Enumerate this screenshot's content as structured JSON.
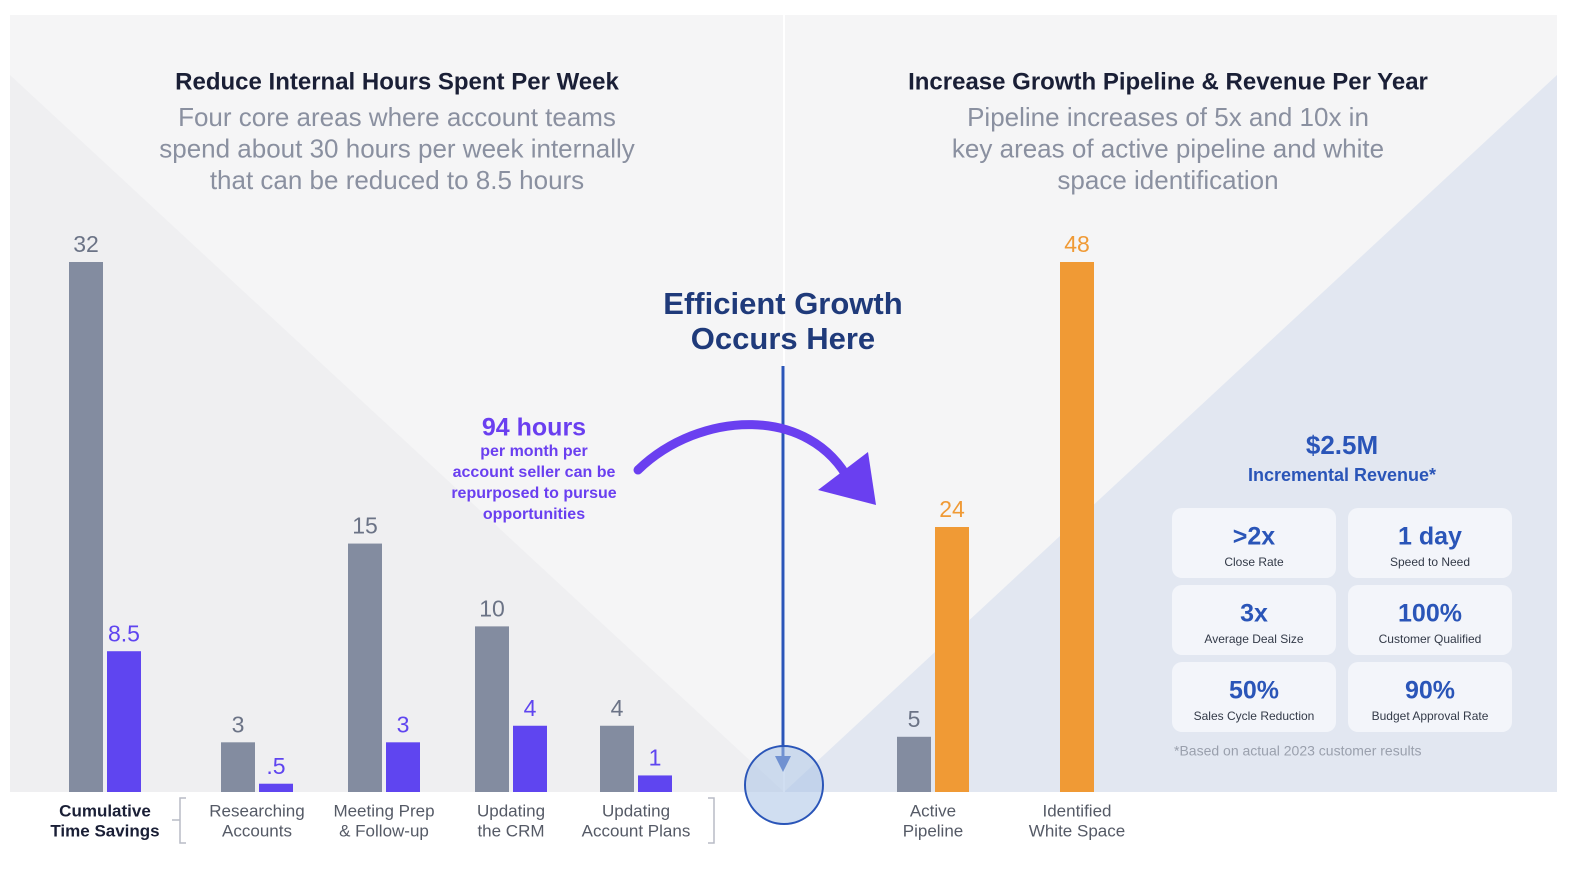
{
  "chart_data": [
    {
      "type": "bar",
      "title": "Reduce Internal Hours Spent Per Week",
      "subtitle": [
        "Four core areas where account teams",
        "spend about 30 hours per week internally",
        "that can be reduced to 8.5 hours"
      ],
      "categories": [
        [
          "Cumulative",
          "Time Savings"
        ],
        [
          "Researching",
          "Accounts"
        ],
        [
          "Meeting Prep",
          "& Follow-up"
        ],
        [
          "Updating",
          "the CRM"
        ],
        [
          "Updating",
          "Account Plans"
        ]
      ],
      "series": [
        {
          "color": "#838ca0",
          "values": [
            32,
            3,
            15,
            10,
            4
          ]
        },
        {
          "color": "#5f45f0",
          "values": [
            8.5,
            0.5,
            3,
            4,
            1
          ],
          "value_labels": [
            "8.5",
            ".5",
            "3",
            "4",
            "1"
          ]
        }
      ],
      "ylim": [
        0,
        32
      ]
    },
    {
      "type": "bar",
      "title": "Increase Growth Pipeline & Revenue Per Year",
      "subtitle": [
        "Pipeline increases of 5x and 10x in",
        "key areas of active pipeline and white",
        "space identification"
      ],
      "categories": [
        [
          "Active",
          "Pipeline"
        ],
        [
          "Identified",
          "White Space"
        ]
      ],
      "series": [
        {
          "color": "#838ca0",
          "values": [
            5,
            null
          ]
        },
        {
          "color": "#f09a35",
          "values": [
            24,
            48
          ]
        }
      ],
      "ylim": [
        0,
        48
      ]
    }
  ],
  "center": {
    "title": [
      "Efficient Growth",
      "Occurs Here"
    ]
  },
  "callout": {
    "headline": "94 hours",
    "body": [
      "per month per",
      "account seller can be",
      "repurposed to pursue",
      "opportunities"
    ]
  },
  "metrics": {
    "headline": "$2.5M",
    "subheadline": "Incremental Revenue*",
    "cards": [
      {
        "value": ">2x",
        "label": "Close Rate"
      },
      {
        "value": "1 day",
        "label": "Speed to Need"
      },
      {
        "value": "3x",
        "label": "Average Deal Size"
      },
      {
        "value": "100%",
        "label": "Customer Qualified"
      },
      {
        "value": "50%",
        "label": "Sales Cycle Reduction"
      },
      {
        "value": "90%",
        "label": "Budget Approval Rate"
      }
    ],
    "footnote": "*Based on actual 2023 customer results"
  }
}
